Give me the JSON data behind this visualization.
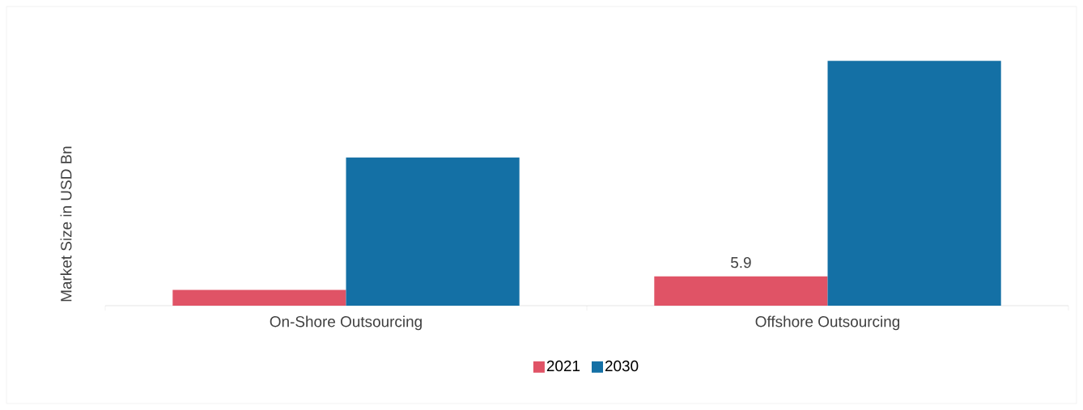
{
  "chart_data": {
    "type": "bar",
    "ylabel": "Market Size in USD Bn",
    "categories": [
      "On-Shore Outsourcing",
      "Offshore Outsourcing"
    ],
    "series": [
      {
        "name": "2021",
        "color": "#e05366",
        "values": [
          3.2,
          5.9
        ],
        "value_labels": [
          null,
          "5.9"
        ]
      },
      {
        "name": "2030",
        "color": "#1470a5",
        "values": [
          29.9,
          49.4
        ]
      }
    ],
    "legend": "bottom"
  }
}
